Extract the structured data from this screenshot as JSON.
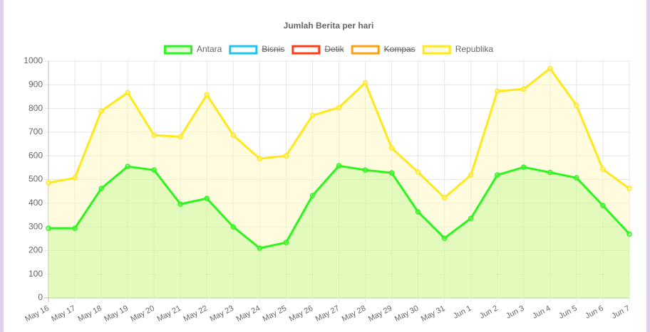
{
  "chart_data": {
    "type": "line",
    "title": "Jumlah Berita per hari",
    "categories": [
      "May 16",
      "May 17",
      "May 18",
      "May 19",
      "May 20",
      "May 21",
      "May 22",
      "May 23",
      "May 24",
      "May 25",
      "May 26",
      "May 27",
      "May 28",
      "May 29",
      "May 30",
      "May 31",
      "Jun 1",
      "Jun 2",
      "Jun 3",
      "Jun 4",
      "Jun 5",
      "Jun 6",
      "Jun 7"
    ],
    "series": [
      {
        "name": "Antara",
        "color": "#2bf41f",
        "fill": "rgba(160,250,110,0.3)",
        "values": [
          294,
          294,
          462,
          555,
          540,
          396,
          420,
          300,
          210,
          234,
          432,
          558,
          540,
          528,
          363,
          252,
          336,
          519,
          552,
          530,
          507,
          390,
          270
        ]
      },
      {
        "name": "Bisnis",
        "color": "#1ec3ee",
        "hidden": true
      },
      {
        "name": "Detik",
        "color": "#ff3d17",
        "hidden": true
      },
      {
        "name": "Kompas",
        "color": "#ff9f10",
        "hidden": true
      },
      {
        "name": "Republika",
        "color": "#ffe81a",
        "fill": "rgba(255,248,190,0.5)",
        "values": [
          486,
          507,
          789,
          867,
          687,
          681,
          858,
          687,
          588,
          600,
          771,
          804,
          909,
          633,
          531,
          423,
          519,
          873,
          882,
          969,
          813,
          543,
          462
        ]
      }
    ],
    "ylim": [
      0,
      1000
    ],
    "yticks": [
      0,
      100,
      200,
      300,
      400,
      500,
      600,
      700,
      800,
      900,
      {
        "value": 1000,
        "label": "1000"
      }
    ],
    "grid": true,
    "legend": "top"
  }
}
